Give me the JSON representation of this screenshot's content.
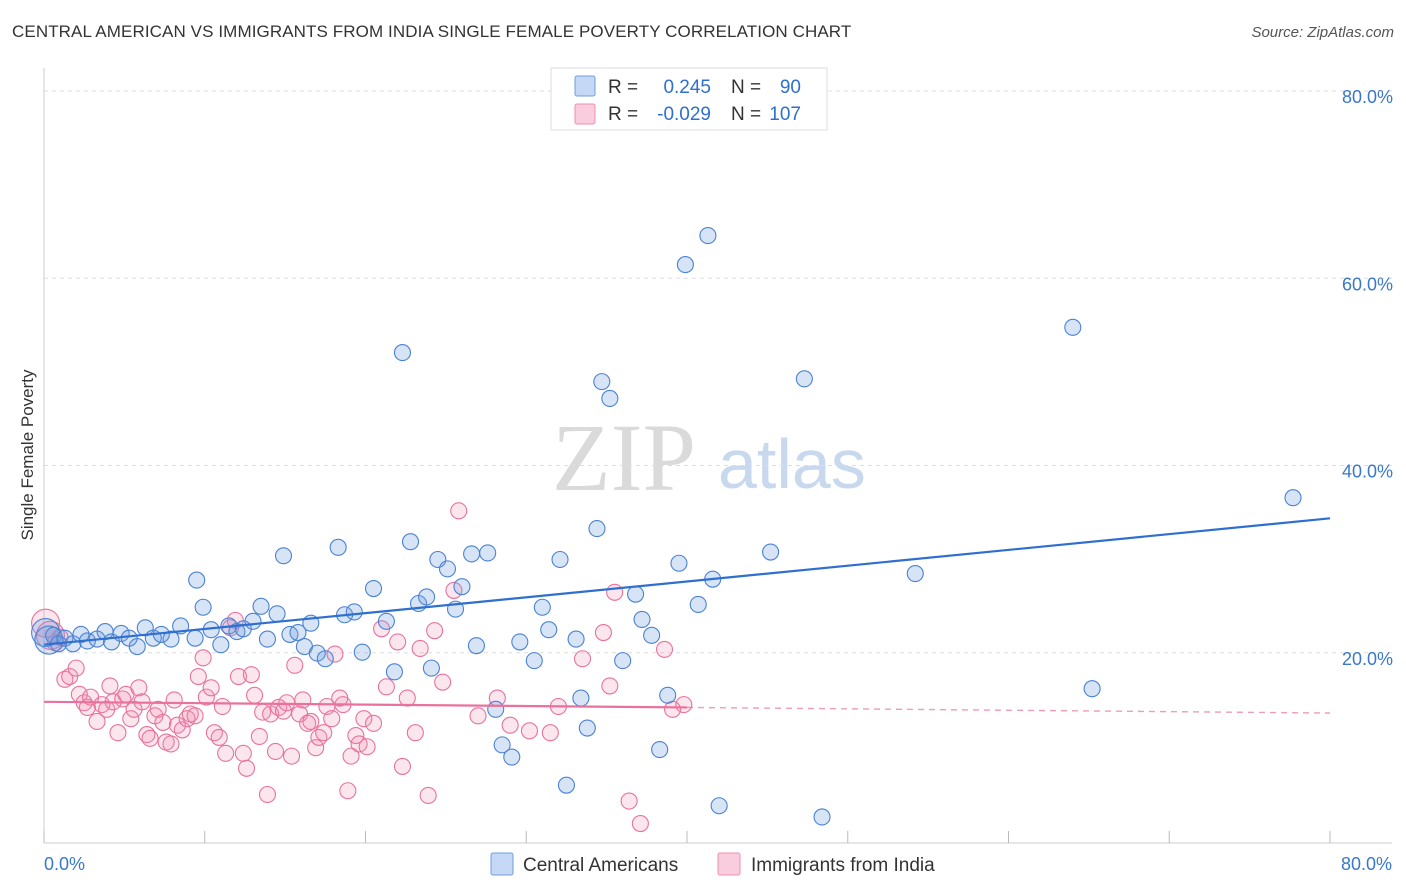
{
  "title": "CENTRAL AMERICAN VS IMMIGRANTS FROM INDIA SINGLE FEMALE POVERTY CORRELATION CHART",
  "source": "Source: ZipAtlas.com",
  "watermark": {
    "part1": "ZIP",
    "part2": "atlas"
  },
  "stats_box": {
    "rows": [
      {
        "r_label": "R =",
        "r_value": "0.245",
        "n_label": "N =",
        "n_value": "90",
        "color": "#6f9ee0"
      },
      {
        "r_label": "R =",
        "r_value": "-0.029",
        "n_label": "N =",
        "n_value": "107",
        "color": "#f08db0"
      }
    ]
  },
  "legend": {
    "items": [
      {
        "label": "Central Americans",
        "color": "#6f9ee0"
      },
      {
        "label": "Immigrants from India",
        "color": "#f08db0"
      }
    ]
  },
  "chart_data": {
    "type": "scatter",
    "title": "CENTRAL AMERICAN VS IMMIGRANTS FROM INDIA SINGLE FEMALE POVERTY CORRELATION CHART",
    "xlabel": "",
    "ylabel": "Single Female Poverty",
    "xlim": [
      0,
      80
    ],
    "ylim": [
      0,
      80
    ],
    "x_tick_labels": [
      "0.0%",
      "80.0%"
    ],
    "y_tick_labels": [
      "20.0%",
      "40.0%",
      "60.0%",
      "80.0%"
    ],
    "y_ticks": [
      20,
      40,
      60,
      80
    ],
    "grid": true,
    "legend_position": "bottom",
    "series": [
      {
        "name": "Central Americans",
        "color": "#6f9ee0",
        "stroke": "#4a82d4",
        "r": 0.245,
        "n": 90,
        "trend": {
          "x0": 0,
          "y0": 21.5,
          "x1": 80,
          "y1": 35.0,
          "style": "solid",
          "color": "#2e6fd0"
        },
        "points": [
          [
            0.1,
            22.8
          ],
          [
            0.3,
            22.0
          ],
          [
            0.6,
            22.5
          ],
          [
            0.9,
            21.6
          ],
          [
            1.3,
            22.2
          ],
          [
            1.8,
            21.6
          ],
          [
            2.3,
            22.6
          ],
          [
            2.7,
            21.9
          ],
          [
            3.3,
            22.1
          ],
          [
            3.8,
            22.9
          ],
          [
            4.2,
            21.8
          ],
          [
            4.8,
            22.7
          ],
          [
            5.3,
            22.2
          ],
          [
            5.8,
            21.3
          ],
          [
            6.3,
            23.3
          ],
          [
            6.8,
            22.2
          ],
          [
            7.3,
            22.6
          ],
          [
            7.9,
            22.1
          ],
          [
            8.5,
            23.5
          ],
          [
            9.4,
            22.2
          ],
          [
            9.5,
            28.4
          ],
          [
            9.9,
            25.5
          ],
          [
            10.4,
            23.1
          ],
          [
            11.0,
            21.5
          ],
          [
            11.5,
            23.5
          ],
          [
            12.0,
            22.9
          ],
          [
            12.4,
            23.2
          ],
          [
            13.0,
            24.0
          ],
          [
            13.5,
            25.6
          ],
          [
            13.9,
            22.1
          ],
          [
            14.5,
            24.8
          ],
          [
            14.9,
            31.0
          ],
          [
            15.3,
            22.6
          ],
          [
            15.8,
            22.8
          ],
          [
            16.2,
            21.3
          ],
          [
            16.6,
            23.8
          ],
          [
            17.0,
            20.6
          ],
          [
            17.5,
            20.0
          ],
          [
            18.3,
            31.9
          ],
          [
            18.7,
            24.7
          ],
          [
            19.3,
            25.0
          ],
          [
            19.8,
            20.7
          ],
          [
            20.5,
            27.5
          ],
          [
            21.3,
            24.0
          ],
          [
            21.8,
            18.6
          ],
          [
            22.3,
            52.7
          ],
          [
            22.8,
            32.5
          ],
          [
            23.3,
            25.9
          ],
          [
            23.8,
            26.6
          ],
          [
            24.1,
            19.0
          ],
          [
            24.5,
            30.6
          ],
          [
            25.1,
            29.6
          ],
          [
            25.6,
            25.3
          ],
          [
            26.0,
            27.7
          ],
          [
            26.6,
            31.2
          ],
          [
            26.9,
            21.4
          ],
          [
            27.6,
            31.3
          ],
          [
            28.1,
            14.6
          ],
          [
            28.5,
            10.8
          ],
          [
            29.1,
            9.5
          ],
          [
            29.6,
            21.8
          ],
          [
            30.5,
            19.8
          ],
          [
            31.0,
            25.5
          ],
          [
            31.4,
            23.1
          ],
          [
            32.1,
            30.6
          ],
          [
            32.5,
            6.5
          ],
          [
            33.1,
            22.1
          ],
          [
            33.4,
            15.8
          ],
          [
            33.8,
            12.6
          ],
          [
            34.4,
            33.9
          ],
          [
            34.7,
            49.6
          ],
          [
            35.2,
            47.8
          ],
          [
            36.0,
            19.8
          ],
          [
            36.8,
            26.9
          ],
          [
            37.2,
            24.2
          ],
          [
            37.8,
            22.5
          ],
          [
            38.3,
            10.3
          ],
          [
            38.8,
            16.1
          ],
          [
            39.5,
            30.2
          ],
          [
            39.9,
            62.1
          ],
          [
            40.7,
            25.8
          ],
          [
            41.3,
            65.2
          ],
          [
            41.6,
            28.5
          ],
          [
            42.0,
            4.3
          ],
          [
            45.2,
            31.4
          ],
          [
            47.3,
            49.9
          ],
          [
            48.4,
            3.1
          ],
          [
            54.2,
            29.1
          ],
          [
            64.0,
            55.4
          ],
          [
            65.2,
            16.8
          ],
          [
            77.7,
            37.2
          ]
        ]
      },
      {
        "name": "Immigrants from India",
        "color": "#f08db0",
        "stroke": "#e8729d",
        "r": -0.029,
        "n": 107,
        "trend": {
          "x0": 0,
          "y0": 15.4,
          "x1": 40,
          "y1": 14.8,
          "x2": 80,
          "y2": 14.2,
          "style": "solid-then-dashed",
          "color": "#e8729d"
        },
        "points": [
          [
            0.1,
            23.8
          ],
          [
            0.4,
            22.5
          ],
          [
            0.7,
            21.7
          ],
          [
            1.0,
            22.3
          ],
          [
            1.3,
            17.8
          ],
          [
            1.6,
            18.1
          ],
          [
            2.0,
            19.0
          ],
          [
            2.2,
            16.2
          ],
          [
            2.5,
            15.3
          ],
          [
            2.7,
            14.8
          ],
          [
            2.9,
            15.9
          ],
          [
            3.3,
            13.3
          ],
          [
            3.6,
            15.1
          ],
          [
            3.9,
            14.6
          ],
          [
            4.1,
            17.1
          ],
          [
            4.3,
            15.4
          ],
          [
            4.6,
            12.1
          ],
          [
            4.9,
            15.7
          ],
          [
            5.1,
            16.2
          ],
          [
            5.4,
            13.6
          ],
          [
            5.6,
            14.6
          ],
          [
            5.9,
            16.9
          ],
          [
            6.1,
            15.4
          ],
          [
            6.4,
            11.9
          ],
          [
            6.6,
            11.5
          ],
          [
            6.9,
            13.9
          ],
          [
            7.1,
            14.6
          ],
          [
            7.4,
            13.2
          ],
          [
            7.6,
            11.1
          ],
          [
            7.9,
            10.9
          ],
          [
            8.1,
            15.6
          ],
          [
            8.3,
            12.9
          ],
          [
            8.6,
            12.4
          ],
          [
            8.9,
            13.6
          ],
          [
            9.1,
            14.1
          ],
          [
            9.4,
            13.9
          ],
          [
            9.6,
            18.1
          ],
          [
            9.9,
            20.1
          ],
          [
            10.1,
            15.9
          ],
          [
            10.4,
            16.9
          ],
          [
            10.6,
            12.1
          ],
          [
            10.9,
            11.6
          ],
          [
            11.1,
            14.9
          ],
          [
            11.3,
            9.9
          ],
          [
            11.6,
            23.3
          ],
          [
            11.9,
            24.1
          ],
          [
            12.1,
            18.1
          ],
          [
            12.4,
            9.9
          ],
          [
            12.6,
            8.3
          ],
          [
            12.9,
            18.3
          ],
          [
            13.1,
            16.1
          ],
          [
            13.4,
            11.7
          ],
          [
            13.6,
            14.3
          ],
          [
            13.9,
            5.5
          ],
          [
            14.1,
            14.1
          ],
          [
            14.4,
            10.1
          ],
          [
            14.6,
            14.8
          ],
          [
            14.9,
            14.4
          ],
          [
            15.1,
            15.3
          ],
          [
            15.4,
            9.6
          ],
          [
            15.6,
            19.3
          ],
          [
            15.9,
            14.1
          ],
          [
            16.1,
            15.6
          ],
          [
            16.4,
            13.1
          ],
          [
            16.6,
            13.3
          ],
          [
            16.9,
            10.5
          ],
          [
            17.1,
            11.6
          ],
          [
            17.4,
            12.1
          ],
          [
            17.6,
            14.9
          ],
          [
            17.9,
            13.6
          ],
          [
            18.1,
            20.5
          ],
          [
            18.4,
            15.8
          ],
          [
            18.6,
            15.1
          ],
          [
            18.9,
            5.9
          ],
          [
            19.1,
            9.6
          ],
          [
            19.4,
            11.8
          ],
          [
            19.6,
            10.9
          ],
          [
            19.9,
            13.6
          ],
          [
            20.1,
            10.6
          ],
          [
            20.5,
            13.1
          ],
          [
            21.0,
            23.2
          ],
          [
            21.3,
            17.0
          ],
          [
            22.0,
            21.8
          ],
          [
            22.3,
            8.5
          ],
          [
            22.6,
            15.8
          ],
          [
            23.1,
            12.1
          ],
          [
            23.4,
            21.1
          ],
          [
            23.9,
            5.4
          ],
          [
            24.3,
            23.0
          ],
          [
            24.8,
            17.5
          ],
          [
            25.5,
            27.3
          ],
          [
            25.8,
            35.8
          ],
          [
            27.0,
            13.9
          ],
          [
            28.2,
            15.8
          ],
          [
            29.0,
            12.9
          ],
          [
            30.2,
            12.3
          ],
          [
            31.5,
            12.1
          ],
          [
            32.0,
            14.9
          ],
          [
            33.5,
            20.0
          ],
          [
            34.8,
            22.8
          ],
          [
            35.2,
            17.1
          ],
          [
            35.5,
            27.1
          ],
          [
            36.4,
            4.8
          ],
          [
            37.1,
            2.4
          ],
          [
            38.6,
            21.0
          ],
          [
            39.1,
            14.6
          ],
          [
            39.8,
            15.1
          ]
        ]
      }
    ]
  }
}
